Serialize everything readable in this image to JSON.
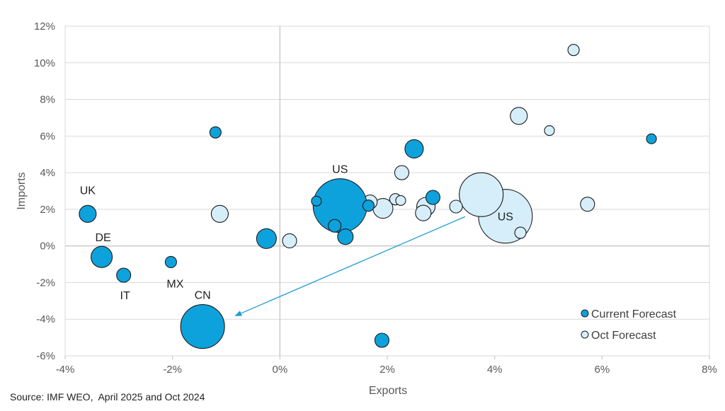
{
  "chart_data": {
    "type": "scatter",
    "xlabel": "Exports",
    "ylabel": "Imports",
    "xlim": [
      -4,
      8
    ],
    "ylim": [
      -6,
      12
    ],
    "x_ticks": [
      -4,
      -2,
      0,
      2,
      4,
      6,
      8
    ],
    "y_ticks": [
      -6,
      -4,
      -2,
      0,
      2,
      4,
      6,
      8,
      10,
      12
    ],
    "x_tick_labels": [
      "-4%",
      "-2%",
      "0%",
      "2%",
      "4%",
      "6%",
      "8%"
    ],
    "y_tick_labels": [
      "-6%",
      "-4%",
      "-2%",
      "0%",
      "2%",
      "4%",
      "6%",
      "8%",
      "10%",
      "12%"
    ],
    "grid": true,
    "legend_position": "bottom-right",
    "colors": {
      "current_fill": "#0ea2dc",
      "oct_fill": "#d6eefa",
      "stroke": "#1a1a1a",
      "grid": "#d9d9d9",
      "arrow": "#1f9bd6"
    },
    "series": [
      {
        "name": "Current Forecast",
        "points": [
          {
            "x": -3.58,
            "y": 1.75,
            "size": 12,
            "label": "UK"
          },
          {
            "x": -3.32,
            "y": -0.6,
            "size": 15,
            "label": "DE"
          },
          {
            "x": -2.91,
            "y": -1.6,
            "size": 10,
            "label": "IT"
          },
          {
            "x": -2.03,
            "y": -0.88,
            "size": 8,
            "label": "MX"
          },
          {
            "x": -1.44,
            "y": -4.4,
            "size": 31,
            "label": "CN"
          },
          {
            "x": -1.2,
            "y": 6.2,
            "size": 8,
            "label": ""
          },
          {
            "x": -0.25,
            "y": 0.4,
            "size": 14,
            "label": ""
          },
          {
            "x": 0.68,
            "y": 2.45,
            "size": 7,
            "label": ""
          },
          {
            "x": 1.02,
            "y": 1.1,
            "size": 9,
            "label": ""
          },
          {
            "x": 1.22,
            "y": 0.5,
            "size": 11,
            "label": ""
          },
          {
            "x": 1.65,
            "y": 2.2,
            "size": 8,
            "label": ""
          },
          {
            "x": 1.12,
            "y": 2.2,
            "size": 38,
            "label": "US"
          },
          {
            "x": 1.9,
            "y": -5.15,
            "size": 10,
            "label": ""
          },
          {
            "x": 2.5,
            "y": 5.3,
            "size": 13,
            "label": ""
          },
          {
            "x": 2.85,
            "y": 2.65,
            "size": 10,
            "label": ""
          },
          {
            "x": 6.92,
            "y": 5.85,
            "size": 7,
            "label": ""
          }
        ]
      },
      {
        "name": "Oct Forecast",
        "points": [
          {
            "x": -1.12,
            "y": 1.75,
            "size": 12,
            "label": ""
          },
          {
            "x": 0.18,
            "y": 0.28,
            "size": 10,
            "label": ""
          },
          {
            "x": 1.68,
            "y": 2.4,
            "size": 10,
            "label": ""
          },
          {
            "x": 1.92,
            "y": 2.05,
            "size": 14,
            "label": ""
          },
          {
            "x": 2.15,
            "y": 2.55,
            "size": 8,
            "label": ""
          },
          {
            "x": 2.25,
            "y": 2.48,
            "size": 7,
            "label": ""
          },
          {
            "x": 2.27,
            "y": 4.0,
            "size": 10,
            "label": ""
          },
          {
            "x": 2.67,
            "y": 1.8,
            "size": 11,
            "label": ""
          },
          {
            "x": 2.72,
            "y": 2.15,
            "size": 13,
            "label": ""
          },
          {
            "x": 3.28,
            "y": 2.15,
            "size": 9,
            "label": ""
          },
          {
            "x": 4.2,
            "y": 1.62,
            "size": 38,
            "label": "US"
          },
          {
            "x": 3.75,
            "y": 2.8,
            "size": 31,
            "label": ""
          },
          {
            "x": 4.48,
            "y": 0.72,
            "size": 8,
            "label": ""
          },
          {
            "x": 4.45,
            "y": 7.1,
            "size": 12,
            "label": ""
          },
          {
            "x": 5.02,
            "y": 6.3,
            "size": 7,
            "label": ""
          },
          {
            "x": 5.47,
            "y": 10.7,
            "size": 8,
            "label": ""
          },
          {
            "x": 5.73,
            "y": 2.28,
            "size": 10,
            "label": ""
          }
        ]
      }
    ],
    "annotations": [
      {
        "type": "arrow",
        "from": {
          "x": 3.45,
          "y": 1.6
        },
        "to": {
          "x": -0.82,
          "y": -3.8
        }
      }
    ]
  },
  "source": "Source: IMF WEO,  April 2025 and Oct 2024"
}
